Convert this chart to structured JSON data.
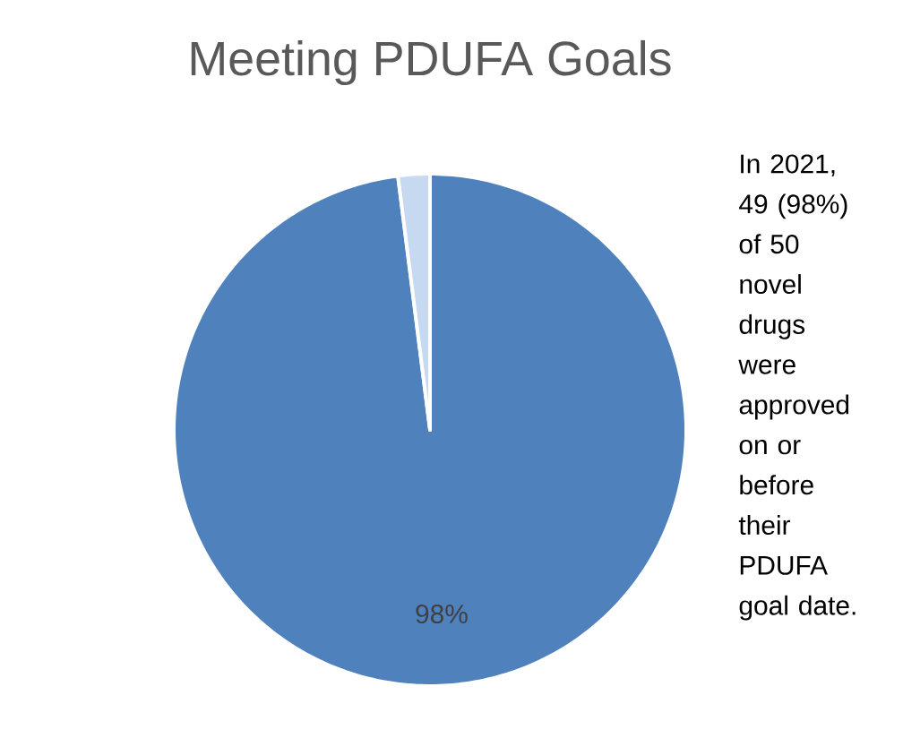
{
  "chart_data": {
    "type": "pie",
    "title": "Meeting PDUFA Goals",
    "categories": [
      null,
      null
    ],
    "values": [
      98,
      2
    ],
    "colors": [
      "#4f81bd",
      "#c6d9f1"
    ],
    "value_labels": [
      "98%",
      null
    ],
    "annotations": [
      "In 2021, 49 (98%) of 50 novel drugs were approved on or before their PDUFA goal date."
    ]
  }
}
